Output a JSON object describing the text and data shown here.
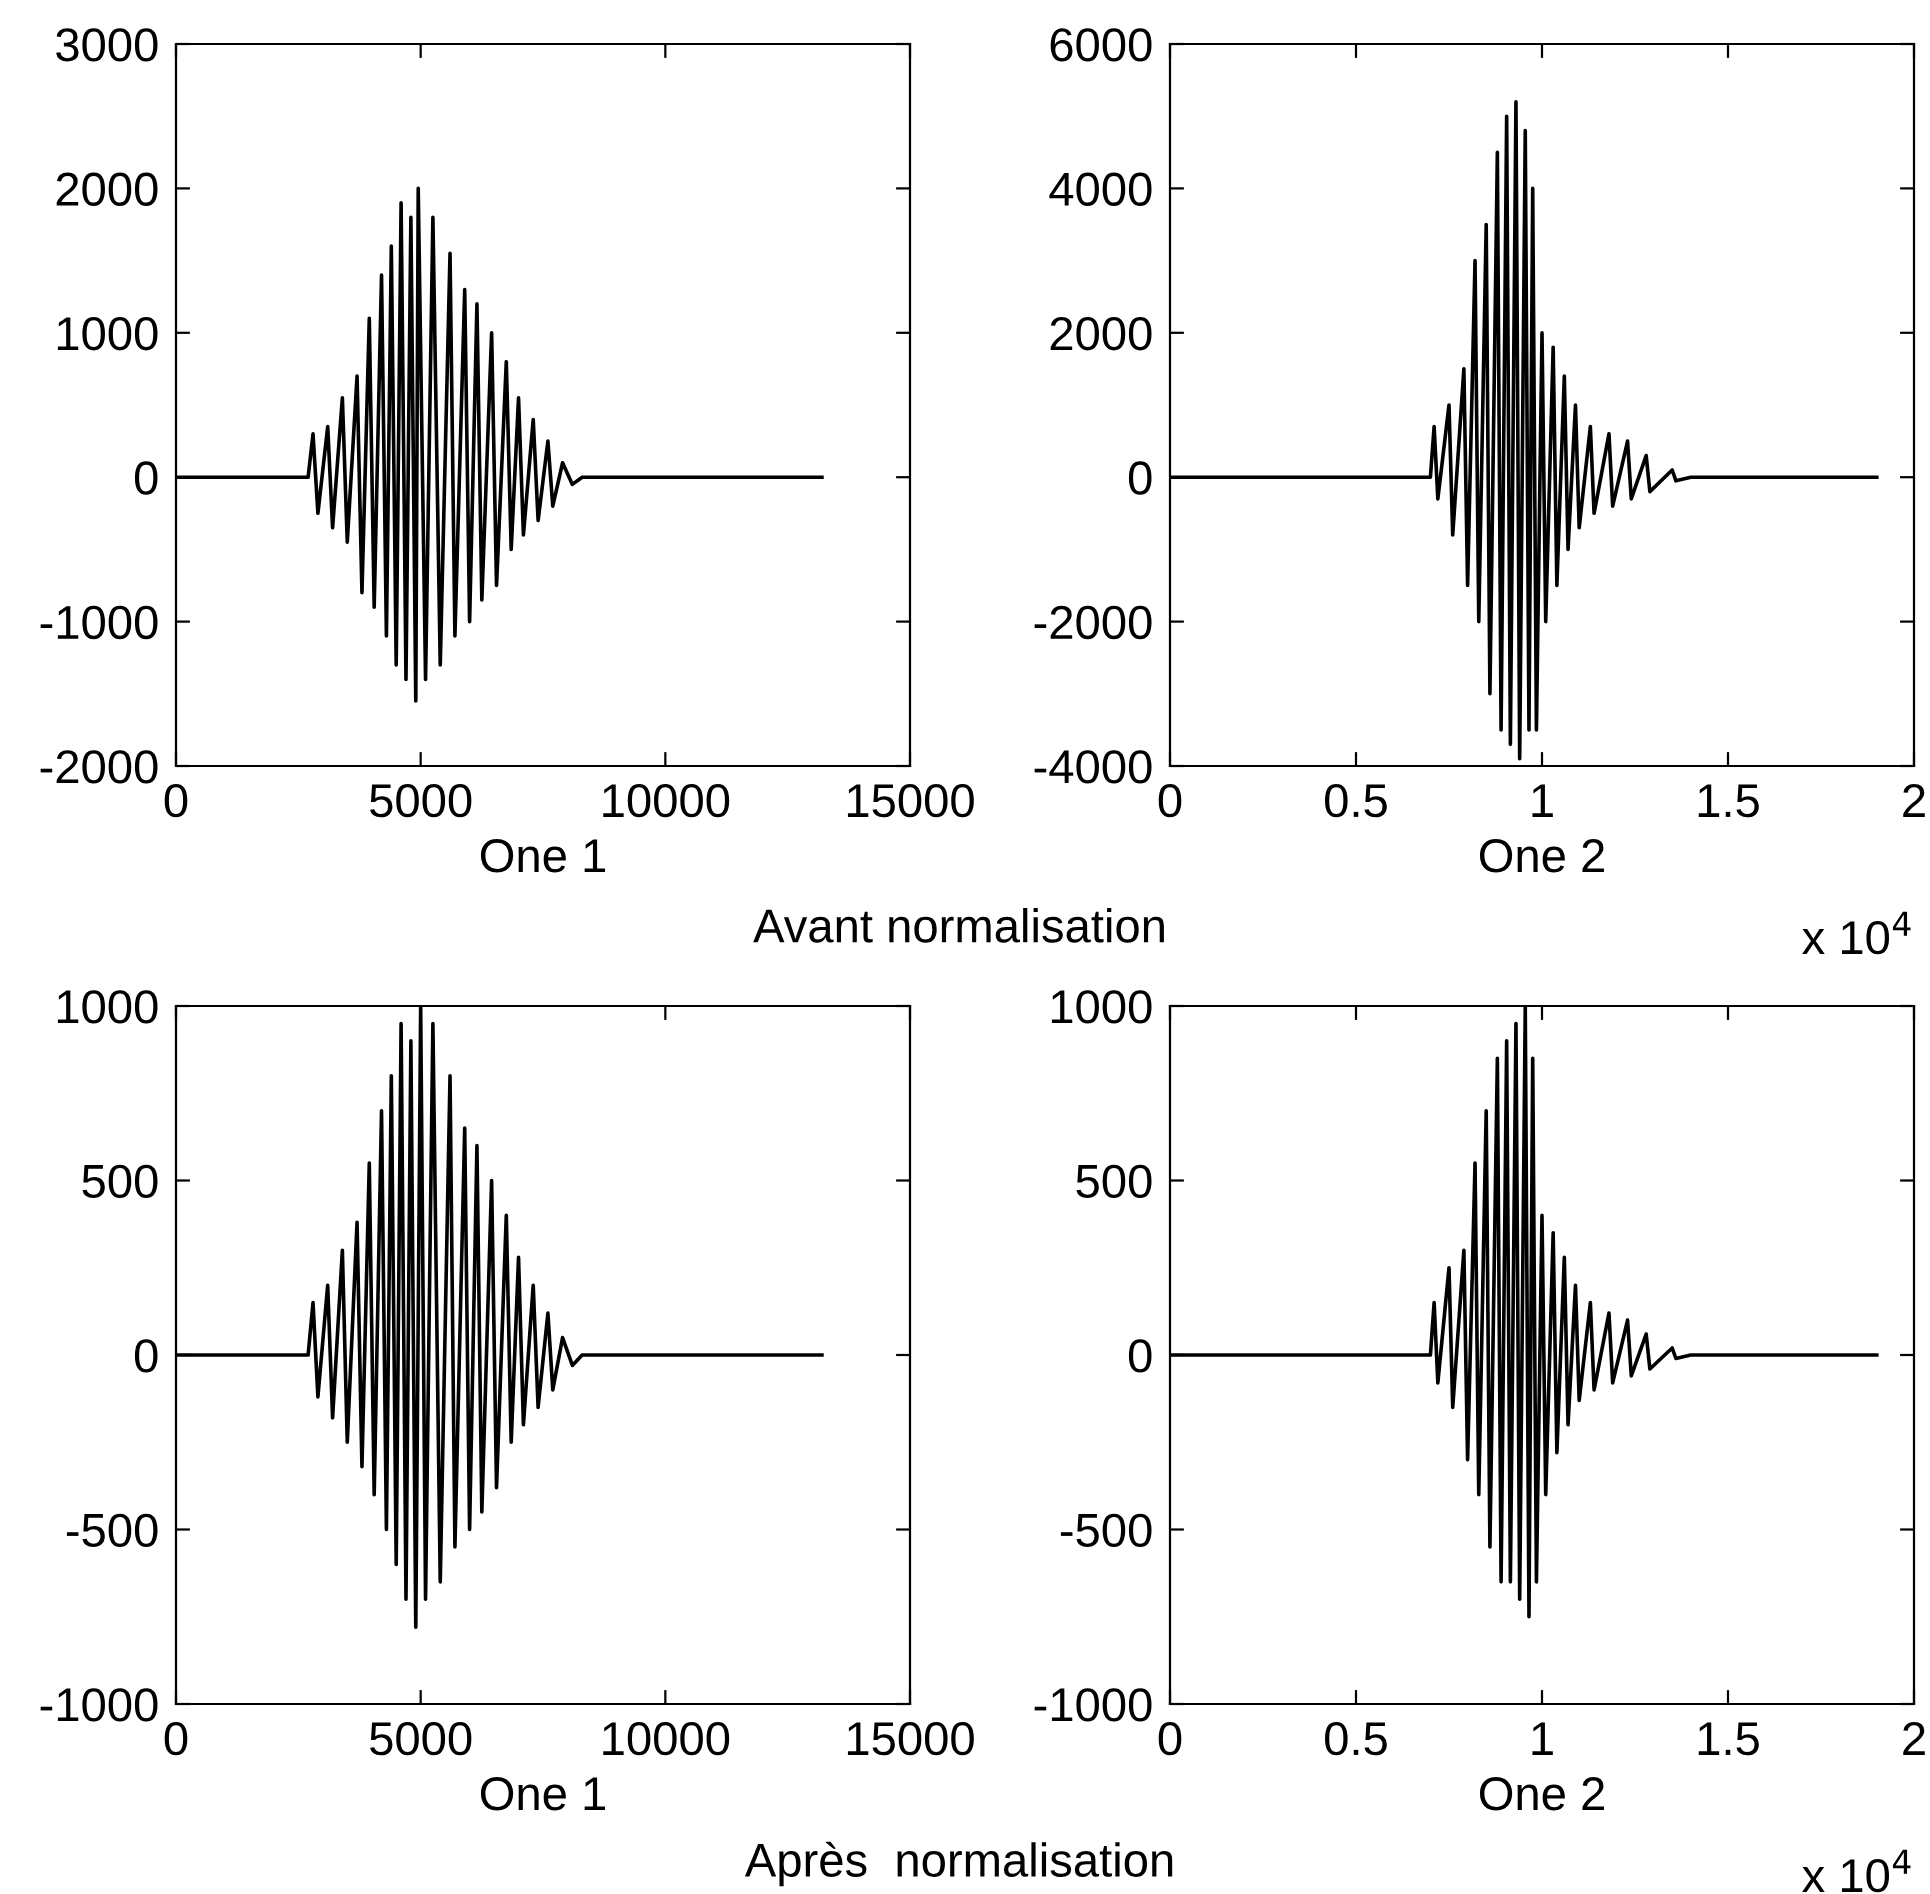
{
  "chart_data": [
    {
      "type": "line",
      "xlabel": "One 1",
      "annotations": [
        "Avant normalisation"
      ],
      "xlim": [
        0,
        15000
      ],
      "xticks": [
        0,
        5000,
        10000,
        15000
      ],
      "ylim": [
        -2000,
        3000
      ],
      "yticks": [
        -2000,
        -1000,
        0,
        1000,
        2000,
        3000
      ],
      "grid": false,
      "legend": false,
      "marker": "none",
      "line_style": "solid",
      "series": [
        {
          "color": "#000000",
          "x": [
            0,
            2700,
            2800,
            2900,
            3100,
            3200,
            3400,
            3500,
            3700,
            3800,
            3950,
            4050,
            4200,
            4300,
            4400,
            4500,
            4600,
            4700,
            4800,
            4900,
            4950,
            5100,
            5250,
            5400,
            5600,
            5700,
            5900,
            6000,
            6150,
            6250,
            6450,
            6550,
            6750,
            6850,
            7000,
            7100,
            7300,
            7400,
            7600,
            7700,
            7900,
            8100,
            8300,
            13200
          ],
          "values": [
            0,
            0,
            300,
            -250,
            350,
            -350,
            550,
            -450,
            700,
            -800,
            1100,
            -900,
            1400,
            -1100,
            1600,
            -1300,
            1900,
            -1400,
            1800,
            -1550,
            2000,
            -1400,
            1800,
            -1300,
            1550,
            -1100,
            1300,
            -1000,
            1200,
            -850,
            1000,
            -750,
            800,
            -500,
            550,
            -400,
            400,
            -300,
            250,
            -200,
            100,
            -50,
            0,
            0
          ]
        }
      ]
    },
    {
      "type": "line",
      "xlabel": "One 2",
      "annotations": [
        "x 10$^{4}$"
      ],
      "xlim": [
        0,
        2
      ],
      "xticks": [
        0,
        0.5,
        1,
        1.5,
        2
      ],
      "ylim": [
        -4000,
        6000
      ],
      "yticks": [
        -4000,
        -2000,
        0,
        2000,
        4000,
        6000
      ],
      "grid": false,
      "legend": false,
      "marker": "none",
      "line_style": "solid",
      "series": [
        {
          "color": "#000000",
          "x": [
            0,
            0.7,
            0.71,
            0.72,
            0.75,
            0.76,
            0.79,
            0.8,
            0.82,
            0.83,
            0.85,
            0.86,
            0.88,
            0.89,
            0.905,
            0.915,
            0.93,
            0.94,
            0.955,
            0.965,
            0.975,
            0.985,
            1.0,
            1.01,
            1.03,
            1.04,
            1.06,
            1.07,
            1.09,
            1.1,
            1.13,
            1.14,
            1.18,
            1.19,
            1.23,
            1.24,
            1.28,
            1.29,
            1.35,
            1.36,
            1.4,
            1.9
          ],
          "values": [
            0,
            0,
            700,
            -300,
            1000,
            -800,
            1500,
            -1500,
            3000,
            -2000,
            3500,
            -3000,
            4500,
            -3500,
            5000,
            -3700,
            5200,
            -3900,
            4800,
            -3500,
            4000,
            -3500,
            2000,
            -2000,
            1800,
            -1500,
            1400,
            -1000,
            1000,
            -700,
            700,
            -500,
            600,
            -400,
            500,
            -300,
            300,
            -200,
            100,
            -50,
            0,
            0
          ]
        }
      ]
    },
    {
      "type": "line",
      "xlabel": "One 1",
      "annotations": [
        "Après  normalisation"
      ],
      "xlim": [
        0,
        15000
      ],
      "xticks": [
        0,
        5000,
        10000,
        15000
      ],
      "ylim": [
        -1000,
        1000
      ],
      "yticks": [
        -1000,
        -500,
        0,
        500,
        1000
      ],
      "grid": false,
      "legend": false,
      "marker": "none",
      "line_style": "solid",
      "series": [
        {
          "color": "#000000",
          "x": [
            0,
            2700,
            2800,
            2900,
            3100,
            3200,
            3400,
            3500,
            3700,
            3800,
            3950,
            4050,
            4200,
            4300,
            4400,
            4500,
            4600,
            4700,
            4800,
            4900,
            5000,
            5100,
            5250,
            5400,
            5600,
            5700,
            5900,
            6000,
            6150,
            6250,
            6450,
            6550,
            6750,
            6850,
            7000,
            7100,
            7300,
            7400,
            7600,
            7700,
            7900,
            8100,
            8300,
            13200
          ],
          "values": [
            0,
            0,
            150,
            -120,
            200,
            -180,
            300,
            -250,
            380,
            -320,
            550,
            -400,
            700,
            -500,
            800,
            -600,
            950,
            -700,
            900,
            -780,
            1000,
            -700,
            950,
            -650,
            800,
            -550,
            650,
            -500,
            600,
            -450,
            500,
            -380,
            400,
            -250,
            280,
            -200,
            200,
            -150,
            120,
            -100,
            50,
            -30,
            0,
            0
          ]
        }
      ]
    },
    {
      "type": "line",
      "xlabel": "One 2",
      "annotations": [
        "x 10$^{4}$"
      ],
      "xlim": [
        0,
        2
      ],
      "xticks": [
        0,
        0.5,
        1,
        1.5,
        2
      ],
      "ylim": [
        -1000,
        1000
      ],
      "yticks": [
        -1000,
        -500,
        0,
        500,
        1000
      ],
      "grid": false,
      "legend": false,
      "marker": "none",
      "line_style": "solid",
      "series": [
        {
          "color": "#000000",
          "x": [
            0,
            0.7,
            0.71,
            0.72,
            0.75,
            0.76,
            0.79,
            0.8,
            0.82,
            0.83,
            0.85,
            0.86,
            0.88,
            0.89,
            0.905,
            0.915,
            0.93,
            0.94,
            0.955,
            0.965,
            0.975,
            0.985,
            1.0,
            1.01,
            1.03,
            1.04,
            1.06,
            1.07,
            1.09,
            1.1,
            1.13,
            1.14,
            1.18,
            1.19,
            1.23,
            1.24,
            1.28,
            1.29,
            1.35,
            1.36,
            1.4,
            1.9
          ],
          "values": [
            0,
            0,
            150,
            -80,
            250,
            -150,
            300,
            -300,
            550,
            -400,
            700,
            -550,
            850,
            -650,
            900,
            -650,
            950,
            -700,
            1000,
            -750,
            850,
            -650,
            400,
            -400,
            350,
            -280,
            280,
            -200,
            200,
            -130,
            150,
            -100,
            120,
            -80,
            100,
            -60,
            60,
            -40,
            20,
            -10,
            0,
            0
          ]
        }
      ]
    }
  ]
}
